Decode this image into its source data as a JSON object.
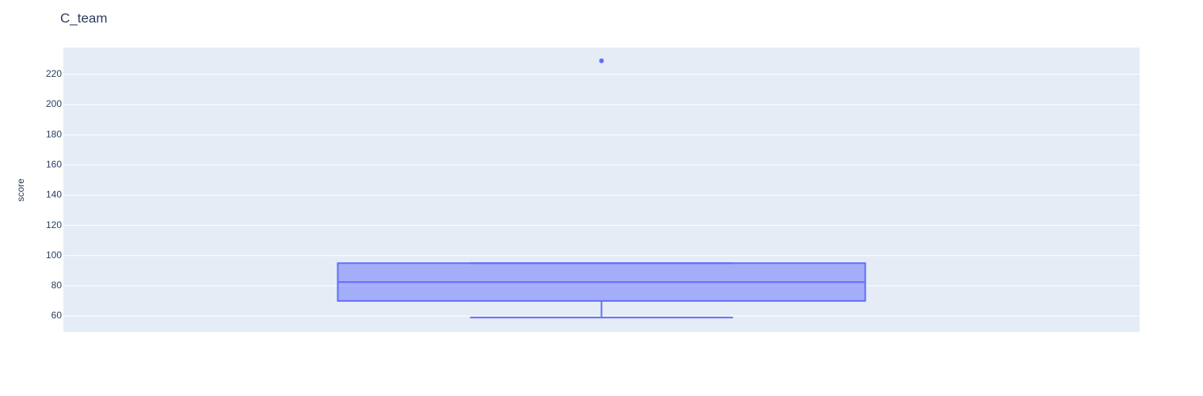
{
  "chart_data": {
    "type": "box",
    "title": "C_team",
    "y_label": "score",
    "color": "#636efa",
    "box": {
      "lowerfence": 59,
      "q1": 70,
      "median": 82.5,
      "q3": 95,
      "upperfence": 95,
      "outliers": [
        229
      ]
    },
    "ylim": [
      49.5,
      237.8
    ],
    "yticks": [
      60,
      80,
      100,
      120,
      140,
      160,
      180,
      200,
      220
    ],
    "grid": true
  }
}
